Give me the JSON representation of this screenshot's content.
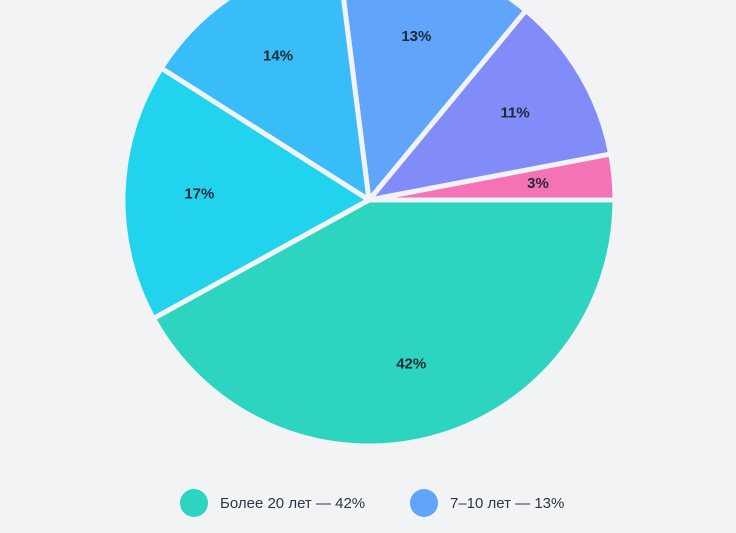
{
  "chart_data": {
    "type": "pie",
    "slices": [
      {
        "label": "3%",
        "value": 3,
        "color": "#f472b6"
      },
      {
        "label": "11%",
        "value": 11,
        "color": "#818cf8"
      },
      {
        "label": "13%",
        "value": 13,
        "color": "#60a5fa"
      },
      {
        "label": "14%",
        "value": 14,
        "color": "#38bdf8"
      },
      {
        "label": "17%",
        "value": 17,
        "color": "#22d3ee"
      },
      {
        "label": "42%",
        "value": 42,
        "color": "#2dd4bf"
      }
    ],
    "legend": [
      {
        "text": "Более 20 лет — 42%",
        "color": "#2dd4bf"
      },
      {
        "text": "7–10 лет — 13%",
        "color": "#60a5fa"
      }
    ]
  }
}
